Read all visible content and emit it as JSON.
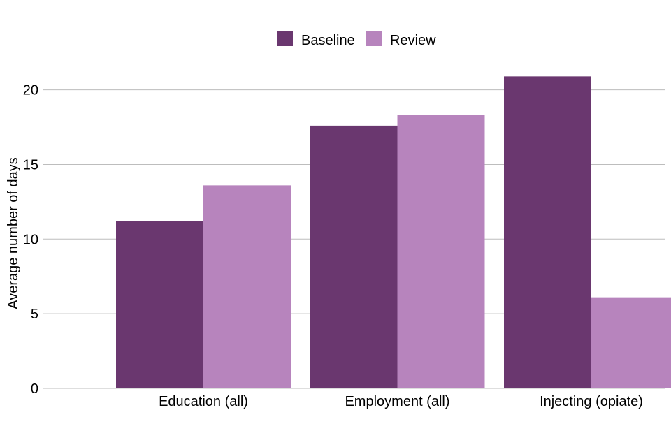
{
  "chart_data": {
    "type": "bar",
    "categories": [
      "Education (all)",
      "Employment (all)",
      "Injecting (opiate)"
    ],
    "series": [
      {
        "name": "Baseline",
        "color": "#6a376f",
        "values": [
          11.2,
          17.6,
          20.9
        ]
      },
      {
        "name": "Review",
        "color": "#b784bd",
        "values": [
          13.6,
          18.3,
          6.1
        ]
      }
    ],
    "ylabel": "Average number of days",
    "ylim": [
      0,
      21.9
    ],
    "yticks": [
      0,
      5,
      10,
      15,
      20
    ],
    "grid": true,
    "legend_position": "top"
  }
}
